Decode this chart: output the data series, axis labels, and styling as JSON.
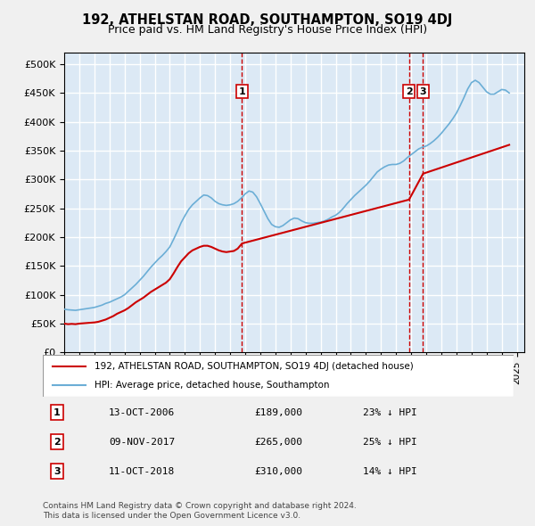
{
  "title": "192, ATHELSTAN ROAD, SOUTHAMPTON, SO19 4DJ",
  "subtitle": "Price paid vs. HM Land Registry's House Price Index (HPI)",
  "ylabel_prefix": "£",
  "ylim": [
    0,
    520000
  ],
  "yticks": [
    0,
    50000,
    100000,
    150000,
    200000,
    250000,
    300000,
    350000,
    400000,
    450000,
    500000
  ],
  "xlim_start": 1995.0,
  "xlim_end": 2025.5,
  "background_color": "#dce9f5",
  "plot_bg_color": "#dce9f5",
  "grid_color": "#ffffff",
  "sale_dates": [
    2006.79,
    2017.86,
    2018.79
  ],
  "sale_prices": [
    189000,
    265000,
    310000
  ],
  "sale_labels": [
    "1",
    "2",
    "3"
  ],
  "legend_label_red": "192, ATHELSTAN ROAD, SOUTHAMPTON, SO19 4DJ (detached house)",
  "legend_label_blue": "HPI: Average price, detached house, Southampton",
  "table_entries": [
    {
      "num": "1",
      "date": "13-OCT-2006",
      "price": "£189,000",
      "pct": "23% ↓ HPI"
    },
    {
      "num": "2",
      "date": "09-NOV-2017",
      "price": "£265,000",
      "pct": "25% ↓ HPI"
    },
    {
      "num": "3",
      "date": "11-OCT-2018",
      "price": "£310,000",
      "pct": "14% ↓ HPI"
    }
  ],
  "footnote": "Contains HM Land Registry data © Crown copyright and database right 2024.\nThis data is licensed under the Open Government Licence v3.0.",
  "hpi_years": [
    1995.0,
    1995.25,
    1995.5,
    1995.75,
    1996.0,
    1996.25,
    1996.5,
    1996.75,
    1997.0,
    1997.25,
    1997.5,
    1997.75,
    1998.0,
    1998.25,
    1998.5,
    1998.75,
    1999.0,
    1999.25,
    1999.5,
    1999.75,
    2000.0,
    2000.25,
    2000.5,
    2000.75,
    2001.0,
    2001.25,
    2001.5,
    2001.75,
    2002.0,
    2002.25,
    2002.5,
    2002.75,
    2003.0,
    2003.25,
    2003.5,
    2003.75,
    2004.0,
    2004.25,
    2004.5,
    2004.75,
    2005.0,
    2005.25,
    2005.5,
    2005.75,
    2006.0,
    2006.25,
    2006.5,
    2006.75,
    2007.0,
    2007.25,
    2007.5,
    2007.75,
    2008.0,
    2008.25,
    2008.5,
    2008.75,
    2009.0,
    2009.25,
    2009.5,
    2009.75,
    2010.0,
    2010.25,
    2010.5,
    2010.75,
    2011.0,
    2011.25,
    2011.5,
    2011.75,
    2012.0,
    2012.25,
    2012.5,
    2012.75,
    2013.0,
    2013.25,
    2013.5,
    2013.75,
    2014.0,
    2014.25,
    2014.5,
    2014.75,
    2015.0,
    2015.25,
    2015.5,
    2015.75,
    2016.0,
    2016.25,
    2016.5,
    2016.75,
    2017.0,
    2017.25,
    2017.5,
    2017.75,
    2018.0,
    2018.25,
    2018.5,
    2018.75,
    2019.0,
    2019.25,
    2019.5,
    2019.75,
    2020.0,
    2020.25,
    2020.5,
    2020.75,
    2021.0,
    2021.25,
    2021.5,
    2021.75,
    2022.0,
    2022.25,
    2022.5,
    2022.75,
    2023.0,
    2023.25,
    2023.5,
    2023.75,
    2024.0,
    2024.25,
    2024.5
  ],
  "hpi_values": [
    75000,
    74000,
    73500,
    73000,
    74000,
    75000,
    76000,
    77000,
    78000,
    80000,
    82000,
    85000,
    87000,
    90000,
    93000,
    96000,
    100000,
    106000,
    112000,
    118000,
    125000,
    132000,
    140000,
    148000,
    155000,
    162000,
    168000,
    175000,
    183000,
    196000,
    210000,
    225000,
    237000,
    248000,
    256000,
    262000,
    268000,
    273000,
    272000,
    268000,
    262000,
    258000,
    256000,
    255000,
    256000,
    258000,
    262000,
    268000,
    275000,
    280000,
    278000,
    270000,
    258000,
    245000,
    232000,
    222000,
    218000,
    217000,
    220000,
    225000,
    230000,
    233000,
    232000,
    228000,
    225000,
    224000,
    224000,
    225000,
    226000,
    228000,
    231000,
    235000,
    238000,
    243000,
    250000,
    258000,
    265000,
    272000,
    278000,
    284000,
    290000,
    297000,
    305000,
    313000,
    318000,
    322000,
    325000,
    326000,
    326000,
    328000,
    332000,
    338000,
    343000,
    348000,
    353000,
    356000,
    358000,
    362000,
    367000,
    373000,
    380000,
    388000,
    396000,
    405000,
    415000,
    428000,
    442000,
    457000,
    468000,
    472000,
    468000,
    460000,
    452000,
    448000,
    448000,
    452000,
    456000,
    455000,
    450000
  ],
  "sold_line_years": [
    1995.0,
    1995.25,
    1995.5,
    1995.75,
    1996.0,
    1996.25,
    1996.5,
    1996.75,
    1997.0,
    1997.25,
    1997.5,
    1997.75,
    1998.0,
    1998.25,
    1998.5,
    1998.75,
    1999.0,
    1999.25,
    1999.5,
    1999.75,
    2000.0,
    2000.25,
    2000.5,
    2000.75,
    2001.0,
    2001.25,
    2001.5,
    2001.75,
    2002.0,
    2002.25,
    2002.5,
    2002.75,
    2003.0,
    2003.25,
    2003.5,
    2003.75,
    2004.0,
    2004.25,
    2004.5,
    2004.75,
    2005.0,
    2005.25,
    2005.5,
    2005.75,
    2006.0,
    2006.25,
    2006.5,
    2006.79,
    2006.79,
    2017.86,
    2017.86,
    2018.79,
    2018.79,
    2024.5
  ],
  "sold_line_values": [
    50000,
    49000,
    49500,
    49000,
    50000,
    50500,
    51000,
    51500,
    52000,
    53000,
    55000,
    57000,
    60000,
    63000,
    67000,
    70000,
    73000,
    77000,
    82000,
    87000,
    91000,
    95000,
    100000,
    105000,
    109000,
    113000,
    117000,
    121000,
    127000,
    137000,
    148000,
    158000,
    165000,
    172000,
    177000,
    180000,
    183000,
    185000,
    185000,
    183000,
    180000,
    177000,
    175000,
    174000,
    175000,
    176000,
    180000,
    189000,
    189000,
    265000,
    265000,
    310000,
    310000,
    360000
  ]
}
